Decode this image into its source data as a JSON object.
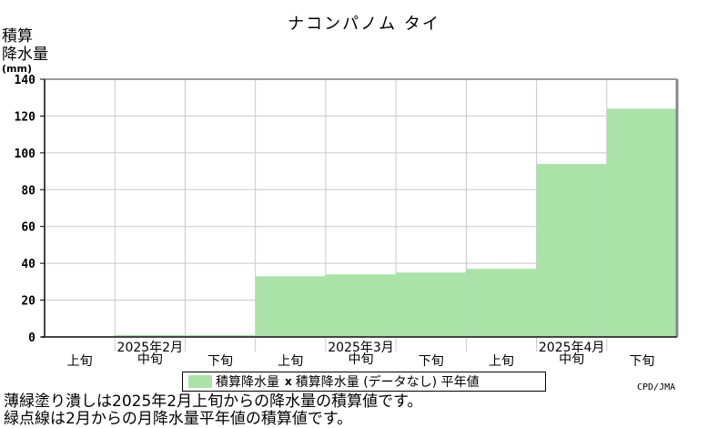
{
  "chart_data": {
    "type": "bar",
    "title": "ナコンパノム タイ",
    "ylabel_lines": [
      "積算",
      "降水量"
    ],
    "ylabel_unit": "(mm)",
    "ylim": [
      0,
      140
    ],
    "yticks": [
      0,
      20,
      40,
      60,
      80,
      100,
      120,
      140
    ],
    "categories": [
      "上旬",
      "中旬",
      "下旬",
      "上旬",
      "中旬",
      "下旬",
      "上旬",
      "中旬",
      "下旬"
    ],
    "months": [
      "2025年2月",
      "2025年3月",
      "2025年4月"
    ],
    "values": [
      null,
      1,
      1,
      33,
      34,
      35,
      37,
      94,
      124
    ],
    "normal_values": [],
    "legend": {
      "series1": "積算降水量",
      "series2_mark": "x",
      "series2": "積算降水量 (データなし) 平年値"
    },
    "colors": {
      "bar": "#aae3a8",
      "grid": "#c8c8c8"
    },
    "grid": true
  },
  "credit": "CPD/JMA",
  "notes": [
    "薄緑塗り潰しは2025年2月上旬からの降水量の積算値です。",
    "緑点線は2月からの月降水量平年値の積算値です。"
  ]
}
